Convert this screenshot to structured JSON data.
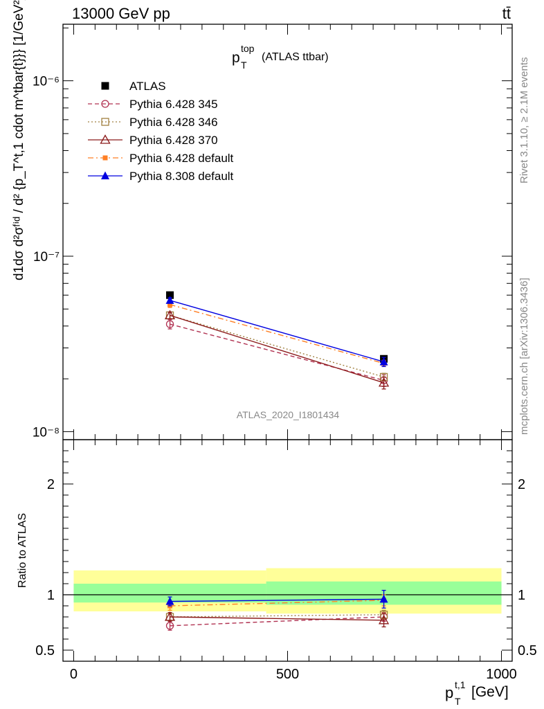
{
  "header": {
    "left": "13000 GeV pp",
    "right": "tt̄"
  },
  "side_text": {
    "rivet": "Rivet 3.1.10, ≥ 2.1M events",
    "mcplots": "mcplots.cern.ch [arXiv:1306.3436]"
  },
  "colors": {
    "atlas": "#000000",
    "p345": "#b03050",
    "p346": "#a08040",
    "p370": "#8b1a1a",
    "p6def": "#ff7f24",
    "p8def": "#0000e0",
    "band_inner": "#99ff99",
    "band_outer": "#ffff99"
  },
  "chart_data": [
    {
      "type": "line",
      "panel": "main",
      "title": "p_T^top (ATLAS ttbar)",
      "title_parts": {
        "main": "p",
        "sup": "top",
        "sub": "T",
        "rest": "(ATLAS ttbar)"
      },
      "analysis_label": "ATLAS_2020_I1801434",
      "ylabel": "d1dσ d²σᶠⁱᵈ / d² {p_T^t,1 cdot m^tbar{t}}} [1/GeV²]",
      "yscale": "log",
      "ylim": [
        9e-09,
        2.1e-06
      ],
      "xlim": [
        -25,
        1025
      ],
      "y_tick_labels": [
        "10⁻⁶",
        "10⁻⁷",
        "10⁻⁸"
      ],
      "legend_position": "top-left",
      "series": [
        {
          "name": "ATLAS",
          "key": "atlas",
          "marker": "square-filled",
          "line": "none",
          "x": [
            225,
            725
          ],
          "y": [
            6e-08,
            2.6e-08
          ],
          "err_lo": [
            2e-09,
            1e-09
          ],
          "err_hi": [
            2e-09,
            1e-09
          ]
        },
        {
          "name": "Pythia 6.428 345",
          "key": "p345",
          "marker": "circle-open",
          "line": "dashed",
          "x": [
            225,
            725
          ],
          "y": [
            4.1e-08,
            1.96e-08
          ],
          "err_lo": [
            2.5e-09,
            1.5e-09
          ],
          "err_hi": [
            2.5e-09,
            1.5e-09
          ]
        },
        {
          "name": "Pythia 6.428 346",
          "key": "p346",
          "marker": "square-open",
          "line": "dotted",
          "x": [
            225,
            725
          ],
          "y": [
            4.6e-08,
            2.05e-08
          ],
          "err_lo": [
            2e-09,
            1e-09
          ],
          "err_hi": [
            2e-09,
            1e-09
          ]
        },
        {
          "name": "Pythia 6.428 370",
          "key": "p370",
          "marker": "triangle-open",
          "line": "solid",
          "x": [
            225,
            725
          ],
          "y": [
            4.6e-08,
            1.9e-08
          ],
          "err_lo": [
            2e-09,
            1.5e-09
          ],
          "err_hi": [
            2e-09,
            1.5e-09
          ]
        },
        {
          "name": "Pythia 6.428 default",
          "key": "p6def",
          "marker": "square-small-filled",
          "line": "dashdot",
          "x": [
            225,
            725
          ],
          "y": [
            5.3e-08,
            2.45e-08
          ],
          "err_lo": [
            2e-09,
            1e-09
          ],
          "err_hi": [
            2e-09,
            1e-09
          ]
        },
        {
          "name": "Pythia 8.308 default",
          "key": "p8def",
          "marker": "triangle-filled",
          "line": "solid",
          "x": [
            225,
            725
          ],
          "y": [
            5.6e-08,
            2.5e-08
          ],
          "err_lo": [
            2e-09,
            1.5e-09
          ],
          "err_hi": [
            2e-09,
            1.5e-09
          ]
        }
      ]
    },
    {
      "type": "line",
      "panel": "ratio",
      "ylabel": "Ratio to ATLAS",
      "xlabel": "p_T^t,1 [GeV]",
      "xlabel_parts": {
        "main": "p",
        "sup": "t,1",
        "sub": "T",
        "rest": "[GeV]"
      },
      "ylim": [
        0.4,
        2.4
      ],
      "xlim": [
        -25,
        1025
      ],
      "y_ticks": [
        0.5,
        1,
        2
      ],
      "y_tick_labels": [
        "0.5",
        "1",
        "2"
      ],
      "x_ticks": [
        0,
        500,
        1000
      ],
      "x_tick_labels": [
        "0",
        "500",
        "1000"
      ],
      "bands": [
        {
          "x": [
            0,
            450
          ],
          "outer": [
            0.85,
            1.22
          ],
          "inner": [
            0.93,
            1.1
          ]
        },
        {
          "x": [
            450,
            1000
          ],
          "outer": [
            0.83,
            1.24
          ],
          "inner": [
            0.91,
            1.12
          ]
        }
      ],
      "series": [
        {
          "name": "Pythia 6.428 345",
          "key": "p345",
          "marker": "circle-open",
          "line": "dashed",
          "x": [
            225,
            725
          ],
          "y": [
            0.72,
            0.8
          ],
          "err_lo": [
            0.04,
            0.04
          ],
          "err_hi": [
            0.04,
            0.04
          ]
        },
        {
          "name": "Pythia 6.428 346",
          "key": "p346",
          "marker": "square-open",
          "line": "dotted",
          "x": [
            225,
            725
          ],
          "y": [
            0.8,
            0.82
          ],
          "err_lo": [
            0.03,
            0.04
          ],
          "err_hi": [
            0.03,
            0.04
          ]
        },
        {
          "name": "Pythia 6.428 370",
          "key": "p370",
          "marker": "triangle-open",
          "line": "solid",
          "x": [
            225,
            725
          ],
          "y": [
            0.8,
            0.77
          ],
          "err_lo": [
            0.04,
            0.06
          ],
          "err_hi": [
            0.04,
            0.06
          ]
        },
        {
          "name": "Pythia 6.428 default",
          "key": "p6def",
          "marker": "square-small-filled",
          "line": "dashdot",
          "x": [
            225,
            725
          ],
          "y": [
            0.9,
            0.95
          ],
          "err_lo": [
            0.04,
            0.05
          ],
          "err_hi": [
            0.04,
            0.05
          ]
        },
        {
          "name": "Pythia 8.308 default",
          "key": "p8def",
          "marker": "triangle-filled",
          "line": "solid",
          "x": [
            225,
            725
          ],
          "y": [
            0.94,
            0.96
          ],
          "err_lo": [
            0.04,
            0.08
          ],
          "err_hi": [
            0.04,
            0.08
          ]
        }
      ]
    }
  ]
}
